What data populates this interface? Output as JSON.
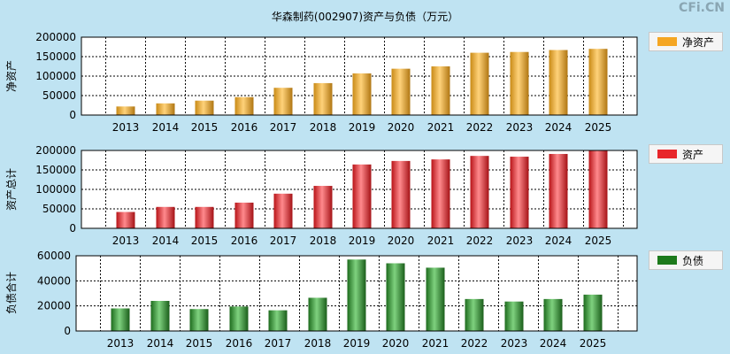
{
  "title": "华森制药(002907)资产与负债（万元）",
  "watermark": "CFi.CN",
  "chart_data": [
    {
      "type": "bar",
      "ylabel": "净资产",
      "legend": "净资产",
      "color": "#f5a623",
      "categories": [
        "2013",
        "2014",
        "2015",
        "2016",
        "2017",
        "2018",
        "2019",
        "2020",
        "2021",
        "2022",
        "2023",
        "2024",
        "2025"
      ],
      "values": [
        22000,
        30000,
        37000,
        46000,
        70000,
        82000,
        107000,
        119000,
        125000,
        160000,
        162000,
        167000,
        170000
      ],
      "ylim": [
        0,
        200000
      ],
      "yticks": [
        "200000",
        "150000",
        "100000",
        "50000",
        "0"
      ],
      "grid": true,
      "legend_position": "right"
    },
    {
      "type": "bar",
      "ylabel": "资产总计",
      "legend": "资产",
      "color": "#e8262b",
      "categories": [
        "2013",
        "2014",
        "2015",
        "2016",
        "2017",
        "2018",
        "2019",
        "2020",
        "2021",
        "2022",
        "2023",
        "2024",
        "2025"
      ],
      "values": [
        42000,
        55000,
        55000,
        66000,
        89000,
        109000,
        164000,
        173000,
        177000,
        186000,
        184000,
        191000,
        200000
      ],
      "ylim": [
        0,
        200000
      ],
      "yticks": [
        "200000",
        "150000",
        "100000",
        "50000",
        "0"
      ],
      "grid": true,
      "legend_position": "right"
    },
    {
      "type": "bar",
      "ylabel": "负债合计",
      "legend": "负债",
      "color": "#2e8b2e",
      "categories": [
        "2013",
        "2014",
        "2015",
        "2016",
        "2017",
        "2018",
        "2019",
        "2020",
        "2021",
        "2022",
        "2023",
        "2024",
        "2025"
      ],
      "values": [
        18000,
        24000,
        17500,
        19500,
        16500,
        26500,
        57000,
        54000,
        50500,
        25500,
        23500,
        25500,
        29000
      ],
      "ylim": [
        0,
        60000
      ],
      "yticks": [
        "60000",
        "40000",
        "20000",
        "0"
      ],
      "grid": true,
      "legend_position": "right"
    }
  ]
}
